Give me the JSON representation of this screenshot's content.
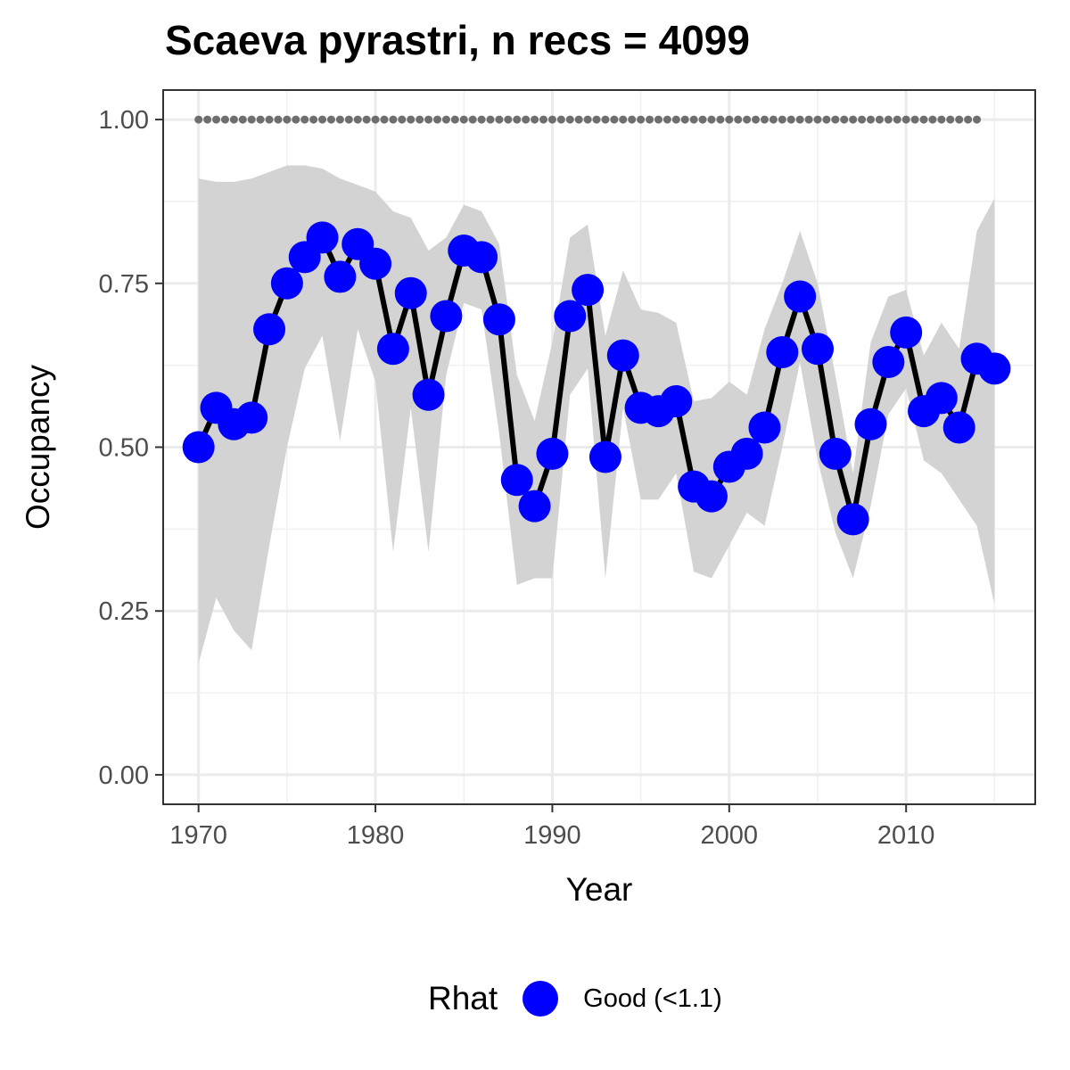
{
  "chart_data": {
    "type": "line",
    "title": "Scaeva pyrastri, n recs = 4099",
    "xlabel": "Year",
    "ylabel": "Occupancy",
    "xlim": [
      1968,
      2017.3
    ],
    "ylim": [
      -0.045,
      1.045
    ],
    "xticks": [
      1970,
      1980,
      1990,
      2000,
      2010
    ],
    "xtick_labels": [
      "1970",
      "1980",
      "1990",
      "2000",
      "2010"
    ],
    "yticks": [
      0,
      0.25,
      0.5,
      0.75,
      1
    ],
    "ytick_labels": [
      "0.00",
      "0.25",
      "0.50",
      "0.75",
      "1.00"
    ],
    "grid": true,
    "colors": {
      "points": "#0000ff",
      "line": "#000000",
      "ribbon": "#d3d3d3",
      "reference": "#6e6e6e"
    },
    "series": [
      {
        "x": [
          1970,
          1971,
          1972,
          1973,
          1974,
          1975,
          1976,
          1977,
          1978,
          1979,
          1980,
          1981,
          1982,
          1983,
          1984,
          1985,
          1986,
          1987,
          1988,
          1989,
          1990,
          1991,
          1992,
          1993,
          1994,
          1995,
          1996,
          1997,
          1998,
          1999,
          2000,
          2001,
          2002,
          2003,
          2004,
          2005,
          2006,
          2007,
          2008,
          2009,
          2010,
          2011,
          2012,
          2013,
          2014,
          2015
        ],
        "y": [
          0.5,
          0.56,
          0.535,
          0.545,
          0.68,
          0.75,
          0.79,
          0.82,
          0.76,
          0.81,
          0.78,
          0.65,
          0.735,
          0.58,
          0.7,
          0.8,
          0.79,
          0.695,
          0.45,
          0.41,
          0.49,
          0.7,
          0.74,
          0.485,
          0.64,
          0.56,
          0.555,
          0.57,
          0.44,
          0.425,
          0.47,
          0.49,
          0.53,
          0.645,
          0.73,
          0.65,
          0.49,
          0.39,
          0.535,
          0.63,
          0.675,
          0.555,
          0.575,
          0.53,
          0.635,
          0.62
        ],
        "lower": [
          0.17,
          0.27,
          0.22,
          0.19,
          0.35,
          0.5,
          0.62,
          0.67,
          0.51,
          0.68,
          0.6,
          0.34,
          0.56,
          0.34,
          0.61,
          0.72,
          0.71,
          0.52,
          0.29,
          0.3,
          0.3,
          0.58,
          0.62,
          0.3,
          0.56,
          0.42,
          0.42,
          0.46,
          0.31,
          0.3,
          0.35,
          0.4,
          0.38,
          0.5,
          0.63,
          0.48,
          0.37,
          0.3,
          0.41,
          0.55,
          0.59,
          0.48,
          0.46,
          0.42,
          0.38,
          0.26
        ],
        "upper": [
          0.91,
          0.905,
          0.905,
          0.91,
          0.92,
          0.93,
          0.93,
          0.925,
          0.91,
          0.9,
          0.89,
          0.86,
          0.85,
          0.8,
          0.82,
          0.87,
          0.86,
          0.81,
          0.61,
          0.54,
          0.66,
          0.82,
          0.84,
          0.67,
          0.77,
          0.71,
          0.705,
          0.69,
          0.57,
          0.575,
          0.6,
          0.58,
          0.68,
          0.75,
          0.83,
          0.75,
          0.61,
          0.46,
          0.66,
          0.73,
          0.74,
          0.64,
          0.69,
          0.65,
          0.83,
          0.88
        ],
        "rhat": "Good (<1.1)"
      }
    ],
    "reference_line": {
      "x_start": 1970,
      "x_end": 2014,
      "y": 1.0,
      "style": "dotted"
    },
    "legend": {
      "title": "Rhat",
      "entries": [
        "Good (<1.1)"
      ],
      "placement": "bottom"
    }
  }
}
